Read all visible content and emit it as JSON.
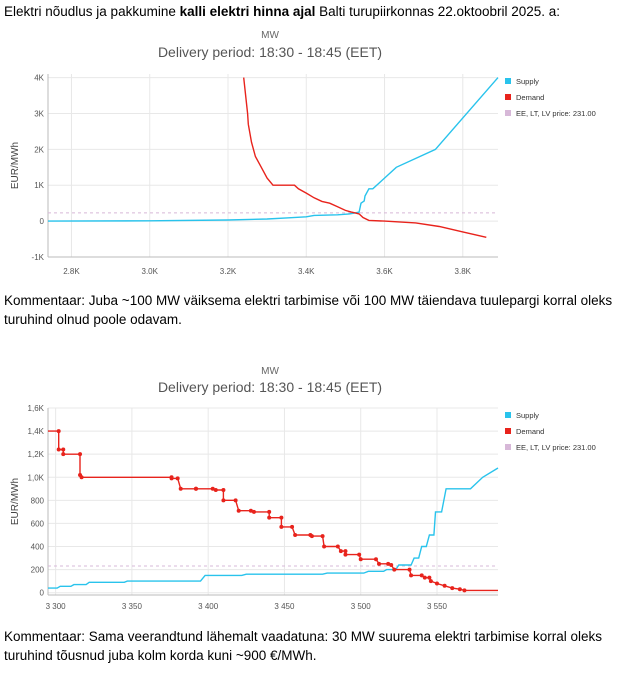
{
  "intro": {
    "part1": "Elektri nõudlus ja pakkumine ",
    "bold": "kalli elektri hinna ajal",
    "part2": " Balti turupiirkonnas 22.oktoobril 2025. a:"
  },
  "comment1": "Kommentaar: Juba ~100 MW väiksema elektri tarbimise või 100 MW täiendava tuulepargi korral oleks turuhind olnud poole odavam.",
  "comment2": "Kommentaar: Sama veerandtund lähemalt vaadatuna: 30 MW suurema elektri tarbimise korral oleks turuhind tõusnud juba kolm korda kuni ~900 €/MWh.",
  "colors": {
    "supply": "#29c3ec",
    "demand": "#e8231c",
    "price": "#d7b8d8",
    "grid": "#e8e8e8",
    "axis": "#bbbbbb"
  },
  "chart_data": [
    {
      "type": "line",
      "title": "MW",
      "subtitle": "Delivery period: 18:30 - 18:45 (EET)",
      "ylabel": "EUR/MWh",
      "xlim": [
        2740,
        3890
      ],
      "ylim": [
        -1000,
        4100
      ],
      "x_ticks": [
        2800,
        3000,
        3200,
        3400,
        3600,
        3800
      ],
      "x_tick_labels": [
        "2,8K",
        "3,0K",
        "3,2K",
        "3,4K",
        "3,6K",
        "3,8K"
      ],
      "y_ticks": [
        -1000,
        0,
        1000,
        2000,
        3000,
        4000
      ],
      "y_tick_labels": [
        "-1K",
        "0",
        "1K",
        "2K",
        "3K",
        "4K"
      ],
      "legend": [
        "Supply",
        "Demand",
        "EE, LT, LV price: 231.00"
      ],
      "price_line": 231,
      "markers": false,
      "series": [
        {
          "name": "Supply",
          "points": [
            [
              2740,
              0
            ],
            [
              3000,
              10
            ],
            [
              3200,
              30
            ],
            [
              3300,
              60
            ],
            [
              3350,
              90
            ],
            [
              3400,
              120
            ],
            [
              3420,
              160
            ],
            [
              3480,
              175
            ],
            [
              3510,
              200
            ],
            [
              3525,
              230
            ],
            [
              3535,
              250
            ],
            [
              3540,
              500
            ],
            [
              3548,
              560
            ],
            [
              3550,
              700
            ],
            [
              3560,
              900
            ],
            [
              3570,
              900
            ],
            [
              3600,
              1200
            ],
            [
              3630,
              1500
            ],
            [
              3730,
              2000
            ],
            [
              3890,
              4000
            ]
          ]
        },
        {
          "name": "Demand",
          "points": [
            [
              3240,
              4000
            ],
            [
              3250,
              3000
            ],
            [
              3252,
              2700
            ],
            [
              3260,
              2200
            ],
            [
              3270,
              1800
            ],
            [
              3285,
              1500
            ],
            [
              3300,
              1200
            ],
            [
              3315,
              1000
            ],
            [
              3370,
              1000
            ],
            [
              3380,
              900
            ],
            [
              3400,
              780
            ],
            [
              3420,
              650
            ],
            [
              3440,
              550
            ],
            [
              3460,
              500
            ],
            [
              3480,
              400
            ],
            [
              3500,
              300
            ],
            [
              3515,
              250
            ],
            [
              3525,
              230
            ],
            [
              3535,
              200
            ],
            [
              3545,
              100
            ],
            [
              3560,
              20
            ],
            [
              3600,
              0
            ],
            [
              3680,
              -50
            ],
            [
              3740,
              -150
            ],
            [
              3800,
              -300
            ],
            [
              3860,
              -450
            ]
          ]
        }
      ]
    },
    {
      "type": "line",
      "title": "MW",
      "subtitle": "Delivery period: 18:30 - 18:45 (EET)",
      "ylabel": "EUR/MWh",
      "xlim": [
        3295,
        3590
      ],
      "ylim": [
        -20,
        1600
      ],
      "x_ticks": [
        3300,
        3350,
        3400,
        3450,
        3500,
        3550
      ],
      "x_tick_labels": [
        "3 300",
        "3 350",
        "3 400",
        "3 450",
        "3 500",
        "3 550"
      ],
      "y_ticks": [
        0,
        200,
        400,
        600,
        800,
        1000,
        1200,
        1400,
        1600
      ],
      "y_tick_labels": [
        "0",
        "200",
        "400",
        "600",
        "800",
        "1,0K",
        "1,2K",
        "1,4K",
        "1,6K"
      ],
      "legend": [
        "Supply",
        "Demand",
        "EE, LT, LV price: 231.00"
      ],
      "price_line": 231,
      "markers": true,
      "series": [
        {
          "name": "Supply",
          "points": [
            [
              3295,
              40
            ],
            [
              3301,
              40
            ],
            [
              3303,
              55
            ],
            [
              3310,
              55
            ],
            [
              3312,
              70
            ],
            [
              3320,
              70
            ],
            [
              3322,
              90
            ],
            [
              3345,
              90
            ],
            [
              3347,
              100
            ],
            [
              3395,
              100
            ],
            [
              3398,
              150
            ],
            [
              3422,
              150
            ],
            [
              3425,
              160
            ],
            [
              3475,
              160
            ],
            [
              3478,
              170
            ],
            [
              3502,
              170
            ],
            [
              3505,
              185
            ],
            [
              3515,
              185
            ],
            [
              3517,
              200
            ],
            [
              3523,
              200
            ],
            [
              3525,
              240
            ],
            [
              3533,
              240
            ],
            [
              3535,
              300
            ],
            [
              3538,
              300
            ],
            [
              3540,
              400
            ],
            [
              3543,
              400
            ],
            [
              3545,
              500
            ],
            [
              3548,
              500
            ],
            [
              3549,
              700
            ],
            [
              3553,
              700
            ],
            [
              3556,
              900
            ],
            [
              3572,
              900
            ],
            [
              3580,
              1000
            ],
            [
              3590,
              1080
            ]
          ]
        },
        {
          "name": "Demand",
          "points": [
            [
              3295,
              1400
            ],
            [
              3302,
              1400
            ],
            [
              3302,
              1240
            ],
            [
              3305,
              1240
            ],
            [
              3305,
              1200
            ],
            [
              3316,
              1200
            ],
            [
              3316,
              1020
            ],
            [
              3317,
              1000
            ],
            [
              3376,
              1000
            ],
            [
              3376,
              990
            ],
            [
              3380,
              990
            ],
            [
              3382,
              900
            ],
            [
              3392,
              900
            ],
            [
              3392,
              900
            ],
            [
              3403,
              900
            ],
            [
              3405,
              890
            ],
            [
              3410,
              890
            ],
            [
              3410,
              800
            ],
            [
              3418,
              800
            ],
            [
              3420,
              710
            ],
            [
              3428,
              710
            ],
            [
              3430,
              700
            ],
            [
              3440,
              700
            ],
            [
              3440,
              650
            ],
            [
              3448,
              650
            ],
            [
              3448,
              570
            ],
            [
              3455,
              570
            ],
            [
              3457,
              500
            ],
            [
              3467,
              500
            ],
            [
              3468,
              490
            ],
            [
              3475,
              490
            ],
            [
              3476,
              400
            ],
            [
              3485,
              400
            ],
            [
              3487,
              360
            ],
            [
              3490,
              360
            ],
            [
              3490,
              330
            ],
            [
              3499,
              330
            ],
            [
              3500,
              290
            ],
            [
              3510,
              290
            ],
            [
              3512,
              250
            ],
            [
              3518,
              250
            ],
            [
              3520,
              240
            ],
            [
              3522,
              200
            ],
            [
              3532,
              200
            ],
            [
              3533,
              150
            ],
            [
              3540,
              150
            ],
            [
              3542,
              130
            ],
            [
              3545,
              130
            ],
            [
              3546,
              100
            ],
            [
              3550,
              80
            ],
            [
              3555,
              60
            ],
            [
              3560,
              40
            ],
            [
              3565,
              30
            ],
            [
              3568,
              20
            ],
            [
              3590,
              20
            ]
          ]
        }
      ]
    }
  ]
}
